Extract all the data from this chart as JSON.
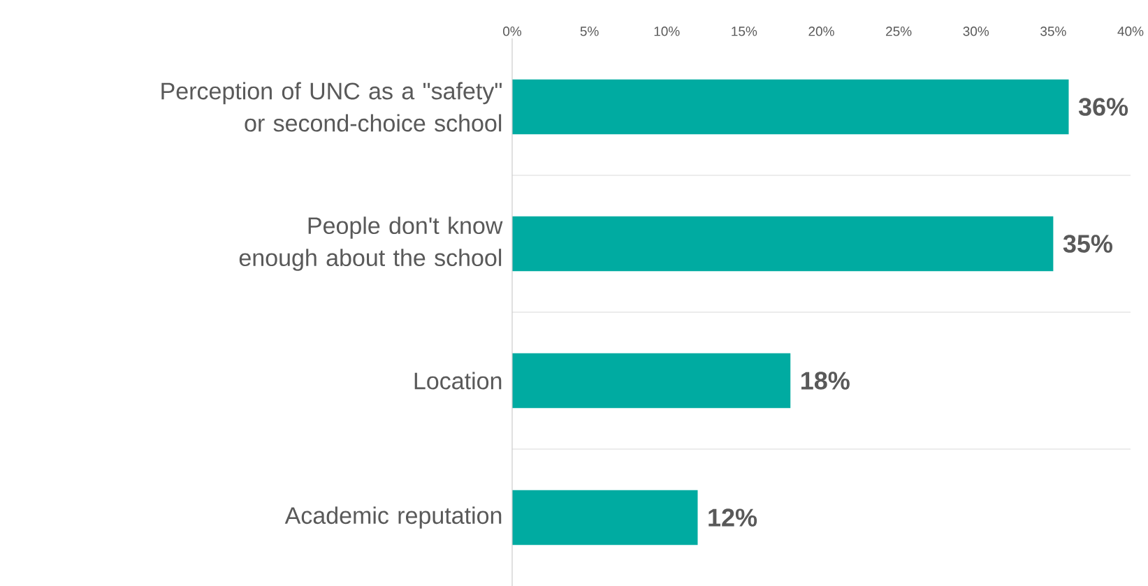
{
  "chart_data": {
    "type": "bar",
    "orientation": "horizontal",
    "categories": [
      "Perception of UNC as a \"safety\" or second-choice school",
      "People don't know enough about the school",
      "Location",
      "Academic reputation"
    ],
    "values": [
      36,
      35,
      18,
      12
    ],
    "value_labels": [
      "36%",
      "35%",
      "18%",
      "12%"
    ],
    "color": "#00aba1",
    "xlim": [
      0,
      40
    ],
    "xticks": [
      {
        "value": 0,
        "label": "0%"
      },
      {
        "value": 5,
        "label": "5%"
      },
      {
        "value": 10,
        "label": "10%"
      },
      {
        "value": 15,
        "label": "15%"
      },
      {
        "value": 20,
        "label": "20%"
      },
      {
        "value": 25,
        "label": "25%"
      },
      {
        "value": 30,
        "label": "30%"
      },
      {
        "value": 35,
        "label": "35%"
      },
      {
        "value": 40,
        "label": "40%"
      }
    ],
    "grid": "y"
  }
}
